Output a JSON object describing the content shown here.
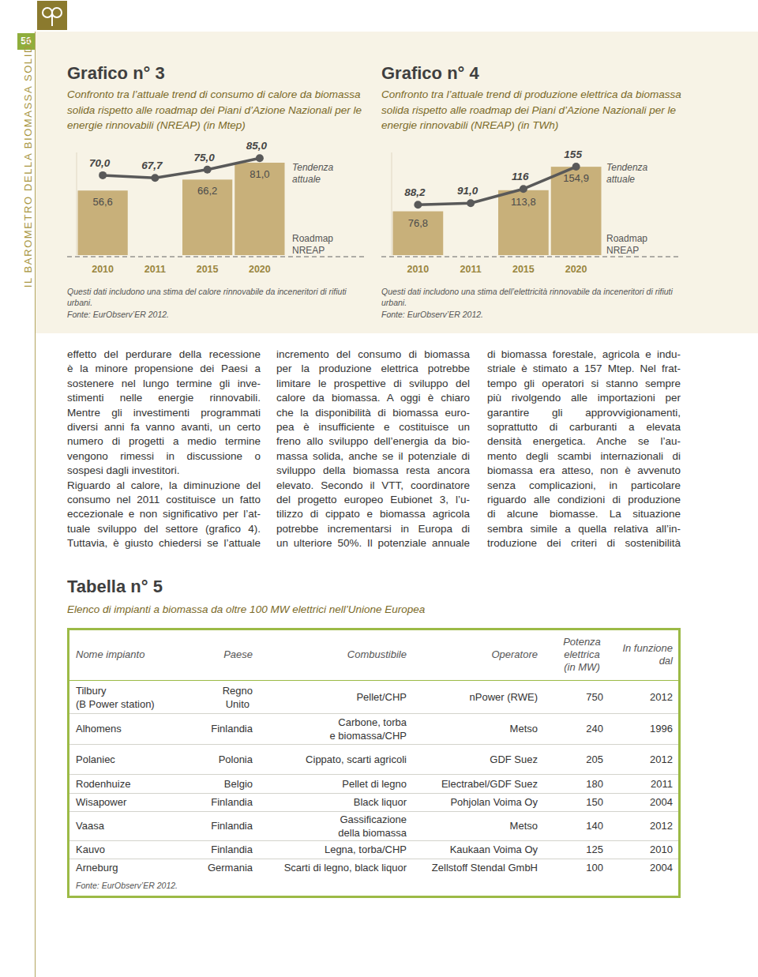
{
  "page": {
    "number": "56",
    "running_head": "IL BAROMETRO DELLA BIOMASSA SOLIDA"
  },
  "chart_data": [
    {
      "type": "bar",
      "title": "Grafico n° 3",
      "subtitle": "Confronto tra l’attuale trend di consumo di calore da biomassa solida rispetto alle roadmap dei Piani d’Azione Nazionali per le energie rinnovabili (NREAP) (in Mtep)",
      "categories": [
        "2010",
        "2011",
        "2015",
        "2020"
      ],
      "series": [
        {
          "name": "Tendenza attuale",
          "type": "line",
          "color": "#595959",
          "marker": "circle",
          "values": [
            70.0,
            67.7,
            75.0,
            85.0
          ],
          "value_labels": [
            "70,0",
            "67,7",
            "75,0",
            "85,0"
          ]
        },
        {
          "name": "Roadmap NREAP",
          "type": "bar",
          "color": "#c8b07a",
          "values": [
            56.6,
            null,
            66.2,
            81.0
          ],
          "value_labels": [
            "56,6",
            null,
            "66,2",
            "81,0"
          ]
        }
      ],
      "ylim": [
        0,
        90
      ],
      "tick_labels": "x",
      "data_labels": true,
      "annotations": [
        "Questi dati includono una stima del calore rinnovabile da inceneritori di rifiuti urbani.",
        "Fonte: EurObserv’ER 2012."
      ]
    },
    {
      "type": "bar",
      "title": "Grafico n° 4",
      "subtitle": "Confronto tra l’attuale trend di produzione elettrica da biomassa solida rispetto alle roadmap dei Piani d’Azione Nazionali per le energie rinnovabili (NREAP) (in TWh)",
      "categories": [
        "2010",
        "2011",
        "2015",
        "2020"
      ],
      "series": [
        {
          "name": "Tendenza attuale",
          "type": "line",
          "color": "#595959",
          "marker": "circle",
          "values": [
            88.2,
            91.0,
            116,
            155
          ],
          "value_labels": [
            "88,2",
            "91,0",
            "116",
            "155"
          ]
        },
        {
          "name": "Roadmap NREAP",
          "type": "bar",
          "color": "#c8b07a",
          "values": [
            76.8,
            null,
            113.8,
            154.9
          ],
          "value_labels": [
            "76,8",
            null,
            "113,8",
            "154,9"
          ]
        }
      ],
      "ylim": [
        0,
        180
      ],
      "tick_labels": "x",
      "data_labels": true,
      "annotations": [
        "Questi dati includono una stima dell’elettricità rinnovabile da inceneritori di rifiuti urbani.",
        "Fonte: EurObserv’ER 2012."
      ]
    }
  ],
  "body": {
    "columns": [
      [
        [
          "effetto del perdurare della recessione",
          "è la minore propensione dei Paesi a",
          "sostenere nel lungo termine gli inve-",
          "stimenti nelle energie rinnovabili.",
          "Mentre gli investimenti programmati",
          "diversi anni fa vanno avanti, un certo",
          "numero di progetti a medio termine",
          "vengono rimessi in discussione o",
          "sospesi dagli investitori."
        ],
        [
          "Riguardo al calore, la diminuzione del",
          "consumo nel 2011 costituisce un fatto",
          "eccezionale e non significativo per l’at-",
          "tuale sviluppo del settore (grafico 4).",
          "Tuttavia, è giusto chiedersi se l’attuale"
        ]
      ],
      [
        [
          "incremento del consumo di biomassa",
          "per la produzione elettrica potrebbe",
          "limitare le prospettive di sviluppo del",
          "calore da biomassa. A oggi è chiaro",
          "che la disponibilità di biomassa euro-",
          "pea è insufficiente e costituisce un",
          "freno allo sviluppo dell’energia da bio-",
          "massa solida, anche se il potenziale di",
          "sviluppo della biomassa resta ancora",
          "elevato. Secondo il VTT, coordinatore",
          "del progetto europeo Eubionet 3, l’u-",
          "tilizzo di cippato e biomassa agricola",
          "potrebbe incrementarsi in Europa di",
          "un ulteriore 50%. Il potenziale annuale"
        ]
      ],
      [
        [
          "di biomassa forestale, agricola e indu-",
          "striale è stimato a 157 Mtep. Nel frat-",
          "tempo gli operatori si stanno sempre",
          "più rivolgendo alle importazioni per",
          "garantire gli approvvigionamenti,",
          "soprattutto di carburanti a elevata",
          "densità energetica. Anche se l’au-",
          "mento degli scambi internazionali di",
          "biomassa era atteso, non è avvenuto",
          "senza complicazioni, in particolare",
          "riguardo alle condizioni di produzione",
          "di alcune biomasse. La situazione",
          "sembra simile a quella relativa all’in-",
          "troduzione dei criteri di sostenibilità"
        ]
      ]
    ]
  },
  "table": {
    "title": "Tabella n° 5",
    "subtitle": "Elenco di impianti a biomassa da oltre 100 MW elettrici nell’Unione Europea",
    "header": [
      "Nome impianto",
      "Paese",
      "Combustibile",
      "Operatore",
      "Potenza\nelettrica\n(in MW)",
      "In funzione\ndal"
    ],
    "rows": [
      [
        "Tilbury\n(B Power station)",
        "Regno\nUnito",
        "Pellet/CHP",
        "nPower (RWE)",
        750,
        2012
      ],
      [
        "Alhomens",
        "Finlandia",
        "Carbone, torba\ne biomassa/CHP",
        "Metso",
        240,
        1996
      ],
      [
        "Polaniec",
        "Polonia",
        "Cippato, scarti agricoli",
        "GDF Suez",
        205,
        2012
      ],
      [
        "Rodenhuize",
        "Belgio",
        "Pellet di legno",
        "Electrabel/GDF Suez",
        180,
        2011
      ],
      [
        "Wisapower",
        "Finlandia",
        "Black liquor",
        "Pohjolan Voima Oy",
        150,
        2004
      ],
      [
        "Vaasa",
        "Finlandia",
        "Gassificazione\ndella biomassa",
        "Metso",
        140,
        2012
      ],
      [
        "Kauvo",
        "Finlandia",
        "Legna, torba/CHP",
        "Kaukaan Voima Oy",
        125,
        2010
      ],
      [
        "Arneburg",
        "Germania",
        "Scarti di legno, black liquor",
        "Zellstoff Stendal GmbH",
        100,
        2004
      ]
    ],
    "source": "Fonte: EurObserv’ER 2012."
  }
}
